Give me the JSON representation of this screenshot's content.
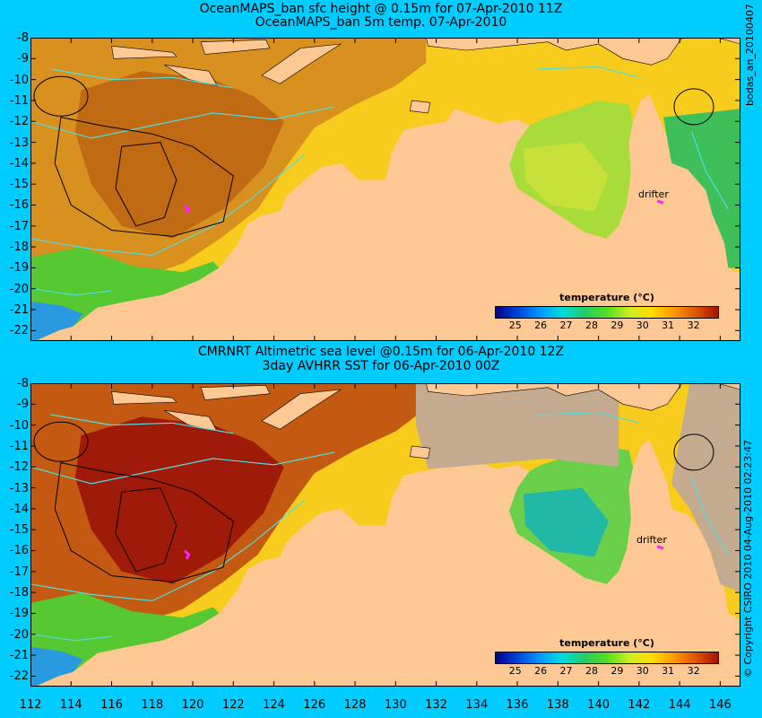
{
  "panels": [
    {
      "title_line1": "OceanMAPS_ban sfc height @ 0.15m for 07-Apr-2010 11Z",
      "title_line2": "OceanMAPS_ban 5m temp. 07-Apr-2010",
      "side_label": "bodas_an_20100407",
      "drifter_label": "drifter",
      "colorbar_title": "temperature (°C)"
    },
    {
      "title_line1": "CMRNRT Altimetric sea level  @0.15m  for 06-Apr-2010 12Z",
      "title_line2": "3day AVHRR SST for 06-Apr-2010 00Z",
      "side_label": "© Copyright CSIRO 2010   04-Aug-2010 02:23:47",
      "drifter_label": "drifter",
      "colorbar_title": "temperature (°C)"
    }
  ],
  "axes": {
    "x_ticks": [
      "112",
      "114",
      "116",
      "118",
      "120",
      "122",
      "124",
      "126",
      "128",
      "130",
      "132",
      "134",
      "136",
      "138",
      "140",
      "142",
      "144",
      "146"
    ],
    "y_ticks": [
      "-8",
      "-9",
      "-10",
      "-11",
      "-12",
      "-13",
      "-14",
      "-15",
      "-16",
      "-17",
      "-18",
      "-19",
      "-20",
      "-21",
      "-22"
    ],
    "x_range": [
      112,
      147
    ],
    "y_range": [
      -8,
      -22.5
    ]
  },
  "colorbar": {
    "ticks": [
      "25",
      "26",
      "27",
      "28",
      "29",
      "30",
      "31",
      "32"
    ],
    "range": [
      24.2,
      33
    ],
    "colors": [
      "#00008b",
      "#0044dd",
      "#0099ff",
      "#00dddd",
      "#22cc66",
      "#55dd22",
      "#ccee22",
      "#ffdd00",
      "#ff9900",
      "#dd5500",
      "#aa1100"
    ]
  },
  "map_colors": {
    "land": "#fdc894",
    "no_data": "#c4aa8f",
    "contour_black": "#000000",
    "contour_cyan": "#4fdfdf",
    "drifter": "#ff22ff"
  }
}
